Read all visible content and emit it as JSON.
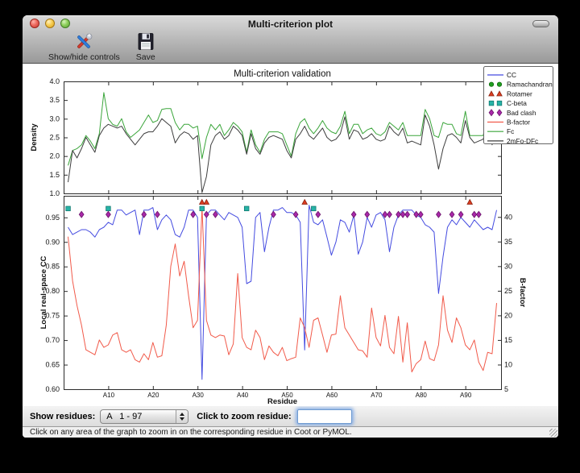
{
  "window": {
    "title": "Multi-criterion plot"
  },
  "toolbar": {
    "show_hide_label": "Show/hide controls",
    "save_label": "Save"
  },
  "controls": {
    "show_residues_label": "Show residues:",
    "residue_range_value": "A   1 - 97",
    "zoom_label": "Click to zoom residue:",
    "zoom_input_value": ""
  },
  "status_bar": {
    "text": "Click on any area of the graph to zoom in on the corresponding residue in Coot or PyMOL."
  },
  "chart_data": {
    "type": "line",
    "title": "Multi-criterion validation",
    "xlabel": "Residue",
    "residue_prefix": "A",
    "residue_range": [
      1,
      97
    ],
    "xlim": [
      0,
      98
    ],
    "background": "#ffffff",
    "frame_color": "#2b2b2b",
    "x_ticks": [
      {
        "pos": 10,
        "label": "A10"
      },
      {
        "pos": 20,
        "label": "A20"
      },
      {
        "pos": 30,
        "label": "A30"
      },
      {
        "pos": 40,
        "label": "A40"
      },
      {
        "pos": 50,
        "label": "A50"
      },
      {
        "pos": 60,
        "label": "A60"
      },
      {
        "pos": 70,
        "label": "A70"
      },
      {
        "pos": 80,
        "label": "A80"
      },
      {
        "pos": 90,
        "label": "A90"
      }
    ],
    "top_plot": {
      "ylabel": "Density",
      "ylim": [
        1.0,
        4.0
      ],
      "yticks": [
        1.0,
        1.5,
        2.0,
        2.5,
        3.0,
        3.5,
        4.0
      ],
      "series": [
        {
          "name": "Fc",
          "color": "#3aa53a",
          "values": [
            1.75,
            2.15,
            2.2,
            2.3,
            2.55,
            2.4,
            2.2,
            2.6,
            3.7,
            3.0,
            2.85,
            2.8,
            3.0,
            2.65,
            2.5,
            2.6,
            2.7,
            2.9,
            3.1,
            2.9,
            2.95,
            3.25,
            3.27,
            3.27,
            2.9,
            2.7,
            2.85,
            2.85,
            2.75,
            2.8,
            1.93,
            2.5,
            2.85,
            2.7,
            2.85,
            2.55,
            2.7,
            2.9,
            2.8,
            2.65,
            2.1,
            2.7,
            2.3,
            2.1,
            2.45,
            2.65,
            2.65,
            2.65,
            2.6,
            2.3,
            2.0,
            2.6,
            2.9,
            3.0,
            2.75,
            2.6,
            2.75,
            2.95,
            2.75,
            2.65,
            2.6,
            2.8,
            3.2,
            2.6,
            2.85,
            2.85,
            2.6,
            2.7,
            2.75,
            2.6,
            2.55,
            2.65,
            2.9,
            2.8,
            2.7,
            2.9,
            2.55,
            2.55,
            2.55,
            2.55,
            3.25,
            3.0,
            2.55,
            2.5,
            2.9,
            2.85,
            2.85,
            2.6,
            2.55,
            3.2,
            2.55,
            2.55,
            2.55,
            2.55,
            3.1,
            2.45,
            3.5
          ]
        },
        {
          "name": "2mFo-DFc",
          "color": "#3d3d3d",
          "values": [
            1.3,
            2.15,
            1.95,
            2.2,
            2.5,
            2.3,
            2.1,
            2.55,
            2.75,
            2.85,
            2.8,
            2.75,
            2.8,
            2.6,
            2.45,
            2.3,
            2.45,
            2.6,
            2.65,
            2.65,
            2.8,
            3.0,
            2.9,
            2.8,
            2.35,
            2.55,
            2.65,
            2.6,
            2.45,
            2.55,
            1.02,
            1.45,
            2.3,
            2.55,
            2.65,
            2.45,
            2.55,
            2.8,
            2.7,
            2.55,
            2.05,
            2.6,
            2.2,
            2.05,
            2.35,
            2.5,
            2.55,
            2.5,
            2.45,
            2.15,
            1.95,
            2.45,
            2.6,
            2.8,
            2.55,
            2.45,
            2.6,
            2.75,
            2.5,
            2.4,
            2.45,
            2.6,
            3.05,
            2.45,
            2.7,
            2.65,
            2.45,
            2.5,
            2.6,
            2.45,
            2.4,
            2.45,
            2.8,
            2.65,
            2.55,
            2.75,
            2.35,
            2.4,
            2.35,
            2.3,
            3.1,
            2.8,
            2.3,
            1.65,
            2.2,
            2.55,
            2.6,
            2.5,
            2.35,
            2.95,
            2.5,
            2.35,
            2.4,
            2.45,
            2.9,
            2.3,
            3.0
          ]
        }
      ]
    },
    "bottom_plot": {
      "ylabel_left": "Local real-space CC",
      "ylim_left": [
        0.6,
        0.994
      ],
      "yticks_left": [
        0.6,
        0.65,
        0.7,
        0.75,
        0.8,
        0.85,
        0.9,
        0.95
      ],
      "ylabel_right": "B-factor",
      "ylim_right": [
        5,
        44.3
      ],
      "yticks_right": [
        5,
        10,
        15,
        20,
        25,
        30,
        35,
        40
      ],
      "series": [
        {
          "name": "CC",
          "axis": "left",
          "color": "#444be0",
          "values": [
            0.93,
            0.915,
            0.92,
            0.925,
            0.925,
            0.92,
            0.91,
            0.925,
            0.93,
            0.94,
            0.935,
            0.965,
            0.965,
            0.955,
            0.96,
            0.965,
            0.915,
            0.965,
            0.965,
            0.97,
            0.925,
            0.945,
            0.955,
            0.945,
            0.915,
            0.91,
            0.93,
            0.965,
            0.965,
            0.95,
            0.62,
            0.955,
            0.965,
            0.965,
            0.955,
            0.945,
            0.96,
            0.955,
            0.95,
            0.93,
            0.815,
            0.82,
            0.95,
            0.96,
            0.88,
            0.93,
            0.965,
            0.965,
            0.97,
            0.96,
            0.96,
            0.955,
            0.94,
            0.68,
            0.975,
            0.94,
            0.935,
            0.945,
            0.91,
            0.873,
            0.9,
            0.945,
            0.94,
            0.92,
            0.955,
            0.875,
            0.9,
            0.95,
            0.93,
            0.955,
            0.96,
            0.945,
            0.88,
            0.93,
            0.955,
            0.965,
            0.965,
            0.965,
            0.955,
            0.95,
            0.935,
            0.93,
            0.92,
            0.795,
            0.87,
            0.93,
            0.945,
            0.935,
            0.95,
            0.94,
            0.93,
            0.945,
            0.935,
            0.925,
            0.93,
            0.925,
            0.965
          ]
        },
        {
          "name": "B-factor",
          "axis": "right",
          "color": "#f15a4a",
          "values": [
            36.0,
            27.0,
            22.0,
            18.0,
            13.0,
            12.5,
            12.0,
            15.0,
            13.5,
            14.0,
            16.0,
            16.5,
            13.0,
            12.5,
            13.0,
            11.0,
            10.5,
            12.2,
            11.0,
            14.5,
            11.5,
            11.8,
            18.0,
            30.0,
            34.5,
            28.0,
            31.0,
            24.0,
            17.5,
            19.0,
            42.0,
            19.0,
            16.0,
            15.5,
            16.0,
            15.8,
            12.0,
            14.2,
            28.5,
            15.5,
            13.5,
            13.0,
            17.0,
            15.5,
            11.0,
            13.8,
            12.5,
            11.8,
            13.5,
            10.8,
            11.2,
            11.5,
            19.5,
            17.5,
            13.5,
            19.0,
            19.5,
            16.0,
            12.5,
            16.0,
            16.2,
            24.0,
            17.5,
            16.0,
            14.5,
            13.0,
            12.8,
            11.5,
            21.5,
            15.5,
            13.8,
            20.0,
            13.5,
            12.2,
            19.8,
            10.5,
            18.5,
            8.5,
            10.2,
            11.0,
            14.8,
            11.2,
            10.8,
            14.0,
            24.0,
            17.0,
            14.5,
            19.5,
            17.5,
            14.0,
            13.0,
            15.0,
            10.5,
            8.8,
            12.5,
            12.2,
            22.5
          ]
        }
      ],
      "markers": [
        {
          "name": "Ramachandran",
          "shape": "circle",
          "fill": "#1f9e1f",
          "stroke": "#116811",
          "y": 0.988,
          "residues": []
        },
        {
          "name": "Rotamer",
          "shape": "triangle",
          "fill": "#dc3d20",
          "stroke": "#8c2210",
          "y": 0.981,
          "residues": [
            31,
            32,
            54,
            91
          ]
        },
        {
          "name": "C-beta",
          "shape": "square",
          "fill": "#27b3a7",
          "stroke": "#117a70",
          "y": 0.968,
          "residues": [
            1,
            10,
            31,
            41,
            56
          ]
        },
        {
          "name": "Bad clash",
          "shape": "diamond",
          "fill": "#a928a9",
          "stroke": "#6b156b",
          "y": 0.956,
          "residues": [
            4,
            10,
            18,
            21,
            29,
            32,
            34,
            47,
            52,
            57,
            65,
            68,
            72,
            73,
            75,
            76,
            77,
            79,
            80,
            84,
            87,
            89,
            92,
            93
          ]
        }
      ]
    },
    "legend": {
      "position": "upper right",
      "entries": [
        {
          "label": "CC",
          "type": "line",
          "color": "#444be0"
        },
        {
          "label": "Ramachandran",
          "type": "circle",
          "fill": "#1f9e1f",
          "stroke": "#116811"
        },
        {
          "label": "Rotamer",
          "type": "triangle",
          "fill": "#dc3d20",
          "stroke": "#8c2210"
        },
        {
          "label": "C-beta",
          "type": "square",
          "fill": "#27b3a7",
          "stroke": "#117a70"
        },
        {
          "label": "Bad clash",
          "type": "diamond",
          "fill": "#a928a9",
          "stroke": "#6b156b"
        },
        {
          "label": "B-factor",
          "type": "line",
          "color": "#f15a4a"
        },
        {
          "label": "Fc",
          "type": "line",
          "color": "#3aa53a"
        },
        {
          "label": "2mFo-DFc",
          "type": "line",
          "color": "#3d3d3d"
        }
      ]
    }
  }
}
